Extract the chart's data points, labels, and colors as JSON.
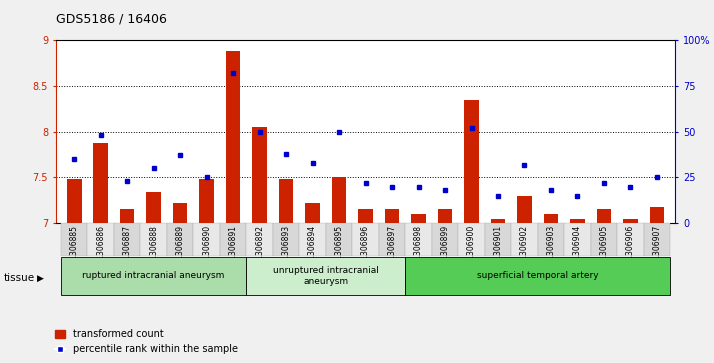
{
  "title": "GDS5186 / 16406",
  "samples": [
    "GSM1306885",
    "GSM1306886",
    "GSM1306887",
    "GSM1306888",
    "GSM1306889",
    "GSM1306890",
    "GSM1306891",
    "GSM1306892",
    "GSM1306893",
    "GSM1306894",
    "GSM1306895",
    "GSM1306896",
    "GSM1306897",
    "GSM1306898",
    "GSM1306899",
    "GSM1306900",
    "GSM1306901",
    "GSM1306902",
    "GSM1306903",
    "GSM1306904",
    "GSM1306905",
    "GSM1306906",
    "GSM1306907"
  ],
  "transformed_count": [
    7.48,
    7.88,
    7.15,
    7.34,
    7.22,
    7.48,
    8.88,
    8.05,
    7.48,
    7.22,
    7.5,
    7.15,
    7.15,
    7.1,
    7.15,
    8.35,
    7.05,
    7.3,
    7.1,
    7.05,
    7.15,
    7.05,
    7.18
  ],
  "percentile_rank": [
    35,
    48,
    23,
    30,
    37,
    25,
    82,
    50,
    38,
    33,
    50,
    22,
    20,
    20,
    18,
    52,
    15,
    32,
    18,
    15,
    22,
    20,
    25
  ],
  "groups": [
    {
      "label": "ruptured intracranial aneurysm",
      "start": 0,
      "end": 7,
      "color": "#aaddaa"
    },
    {
      "label": "unruptured intracranial\naneurysm",
      "start": 7,
      "end": 13,
      "color": "#cceecc"
    },
    {
      "label": "superficial temporal artery",
      "start": 13,
      "end": 23,
      "color": "#55cc55"
    }
  ],
  "ylim_left": [
    7,
    9
  ],
  "ylim_right": [
    0,
    100
  ],
  "yticks_left": [
    7,
    7.5,
    8,
    8.5,
    9
  ],
  "yticks_right": [
    0,
    25,
    50,
    75,
    100
  ],
  "bar_color": "#cc2200",
  "dot_color": "#0000cc",
  "bg_color": "#f0f0f0",
  "plot_bg": "#ffffff",
  "col_even": "#d8d8d8",
  "col_odd": "#e8e8e8",
  "legend_bar_label": "transformed count",
  "legend_dot_label": "percentile rank within the sample",
  "tissue_label": "tissue"
}
